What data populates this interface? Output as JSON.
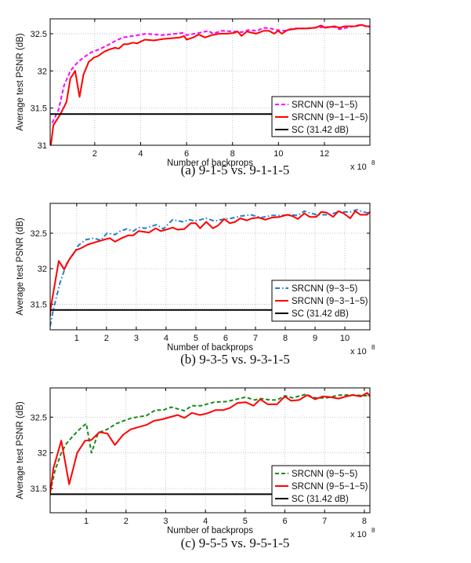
{
  "chart_data": [
    {
      "type": "line",
      "caption": "(a) 9-1-5 vs. 9-1-1-5",
      "xlabel": "Number of backprops",
      "ylabel": "Average test PSNR (dB)",
      "x_multiplier_base": "x 10",
      "x_multiplier_exp": "8",
      "xlim": [
        0.06,
        13.98
      ],
      "ylim": [
        31,
        32.7
      ],
      "xticks": [
        2,
        4,
        6,
        8,
        10,
        12
      ],
      "yticks": [
        31,
        31.5,
        32,
        32.5
      ],
      "grid": true,
      "legend_position": "bottom-right",
      "series": [
        {
          "name": "SRCNN (9−1−5)",
          "color": "#ff00ff",
          "style": "dashed",
          "x": [
            0.15,
            0.43,
            0.66,
            0.94,
            1.24,
            1.51,
            1.85,
            2.2,
            2.53,
            2.88,
            3.22,
            3.67,
            4.24,
            4.92,
            5.83,
            6.0,
            6.52,
            6.97,
            7.14,
            7.54,
            8.11,
            8.39,
            8.68,
            9.07,
            9.36,
            9.65,
            9.93,
            10.27,
            10.61,
            11.07,
            11.52,
            12.09,
            12.43,
            12.66,
            13.11,
            13.57,
            13.98
          ],
          "y": [
            31.3,
            31.48,
            31.8,
            32.0,
            32.11,
            32.18,
            32.25,
            32.29,
            32.34,
            32.4,
            32.45,
            32.47,
            32.5,
            32.48,
            32.51,
            32.48,
            32.51,
            32.54,
            32.5,
            32.54,
            32.53,
            32.52,
            32.55,
            32.54,
            32.58,
            32.57,
            32.55,
            32.54,
            32.57,
            32.57,
            32.58,
            32.59,
            32.59,
            32.56,
            32.59,
            32.62,
            32.59
          ]
        },
        {
          "name": "SRCNN (9−1−1−5)",
          "color": "#ff0000",
          "style": "solid",
          "x": [
            0.09,
            0.2,
            0.49,
            0.77,
            0.94,
            1.15,
            1.34,
            1.51,
            1.74,
            1.97,
            2.14,
            2.42,
            2.65,
            2.88,
            3.05,
            3.27,
            3.44,
            3.67,
            3.84,
            4.18,
            4.58,
            4.98,
            5.38,
            5.72,
            5.89,
            6.0,
            6.29,
            6.52,
            6.8,
            7.09,
            7.43,
            7.77,
            8.05,
            8.22,
            8.39,
            8.62,
            9.02,
            9.36,
            9.59,
            9.81,
            9.98,
            10.15,
            10.39,
            10.84,
            11.24,
            11.58,
            11.86,
            12.03,
            12.43,
            12.66,
            12.89,
            13.34,
            13.63,
            13.8,
            13.98
          ],
          "y": [
            31.0,
            31.27,
            31.41,
            31.58,
            31.9,
            32.0,
            31.65,
            31.95,
            32.12,
            32.18,
            32.2,
            32.26,
            32.29,
            32.31,
            32.3,
            32.36,
            32.36,
            32.38,
            32.37,
            32.42,
            32.41,
            32.43,
            32.44,
            32.45,
            32.47,
            32.42,
            32.45,
            32.49,
            32.45,
            32.48,
            32.5,
            32.5,
            32.51,
            32.53,
            32.47,
            32.53,
            32.5,
            32.54,
            32.54,
            32.5,
            32.54,
            32.5,
            32.55,
            32.57,
            32.57,
            32.58,
            32.61,
            32.58,
            32.6,
            32.58,
            32.6,
            32.6,
            32.62,
            32.6,
            32.6
          ]
        },
        {
          "name": "SC (31.42 dB)",
          "color": "#000000",
          "style": "solid",
          "x": [
            0.06,
            13.98
          ],
          "y": [
            31.42,
            31.42
          ]
        }
      ]
    },
    {
      "type": "line",
      "caption": "(b) 9-3-5 vs. 9-3-1-5",
      "xlabel": "Number of backprops",
      "ylabel": "Average test PSNR (dB)",
      "x_multiplier_base": "x 10",
      "x_multiplier_exp": "8",
      "xlim": [
        0.11,
        10.84
      ],
      "ylim": [
        31.14,
        32.92
      ],
      "xticks": [
        1,
        2,
        3,
        4,
        5,
        6,
        7,
        8,
        9,
        10
      ],
      "yticks": [
        31.5,
        32,
        32.5
      ],
      "grid": true,
      "legend_position": "bottom-right",
      "series": [
        {
          "name": "SRCNN (9−3−5)",
          "color": "#1f7fd0",
          "style": "dashdot",
          "x": [
            0.11,
            0.22,
            0.44,
            0.66,
            0.88,
            1.06,
            1.32,
            1.58,
            1.8,
            2.02,
            2.29,
            2.46,
            2.68,
            2.9,
            3.08,
            3.3,
            3.69,
            3.91,
            4.22,
            4.57,
            4.79,
            4.96,
            5.35,
            5.62,
            5.97,
            6.19,
            6.49,
            6.84,
            7.19,
            7.55,
            7.9,
            8.16,
            8.42,
            8.64,
            9.04,
            9.47,
            9.78,
            10.18,
            10.4,
            10.62,
            10.84
          ],
          "y": [
            31.19,
            31.43,
            31.8,
            32.07,
            32.2,
            32.33,
            32.41,
            32.43,
            32.4,
            32.5,
            32.48,
            32.53,
            32.56,
            32.53,
            32.58,
            32.57,
            32.62,
            32.56,
            32.69,
            32.66,
            32.69,
            32.67,
            32.71,
            32.67,
            32.7,
            32.71,
            32.74,
            32.76,
            32.72,
            32.75,
            32.75,
            32.76,
            32.75,
            32.81,
            32.76,
            32.76,
            32.8,
            32.8,
            32.83,
            32.8,
            32.78
          ]
        },
        {
          "name": "SRCNN (9−3−1−5)",
          "color": "#ff0000",
          "style": "solid",
          "x": [
            0.11,
            0.12,
            0.4,
            0.58,
            0.75,
            0.97,
            1.15,
            1.37,
            1.76,
            2.11,
            2.29,
            2.51,
            2.73,
            2.9,
            3.08,
            3.43,
            3.65,
            3.82,
            4.0,
            4.22,
            4.39,
            4.61,
            4.83,
            5.0,
            5.14,
            5.35,
            5.57,
            5.75,
            5.95,
            6.14,
            6.32,
            6.49,
            6.71,
            6.89,
            7.11,
            7.33,
            7.55,
            7.81,
            8.07,
            8.25,
            8.42,
            8.64,
            8.82,
            9.04,
            9.21,
            9.39,
            9.61,
            9.78,
            9.96,
            10.18,
            10.35,
            10.52,
            10.74,
            10.84
          ],
          "y": [
            31.33,
            31.43,
            32.11,
            31.99,
            32.13,
            32.26,
            32.29,
            32.34,
            32.39,
            32.43,
            32.38,
            32.43,
            32.47,
            32.47,
            32.53,
            32.51,
            32.57,
            32.53,
            32.55,
            32.58,
            32.55,
            32.56,
            32.64,
            32.64,
            32.57,
            32.66,
            32.57,
            32.61,
            32.7,
            32.64,
            32.66,
            32.71,
            32.68,
            32.71,
            32.72,
            32.69,
            32.72,
            32.73,
            32.76,
            32.74,
            32.7,
            32.78,
            32.73,
            32.73,
            32.8,
            32.79,
            32.73,
            32.81,
            32.78,
            32.71,
            32.81,
            32.76,
            32.76,
            32.8
          ]
        },
        {
          "name": "SC (31.42 dB)",
          "color": "#000000",
          "style": "solid",
          "x": [
            0.11,
            10.84
          ],
          "y": [
            31.42,
            31.42
          ]
        }
      ]
    },
    {
      "type": "line",
      "caption": "(c) 9-5-5 vs. 9-5-1-5",
      "xlabel": "Number of backprops",
      "ylabel": "Average test PSNR (dB)",
      "x_multiplier_base": "x 10",
      "x_multiplier_exp": "8",
      "xlim": [
        0.09,
        8.14
      ],
      "ylim": [
        31.16,
        32.91
      ],
      "xticks": [
        1,
        2,
        3,
        4,
        5,
        6,
        7,
        8
      ],
      "yticks": [
        31.5,
        32,
        32.5
      ],
      "grid": true,
      "legend_position": "bottom-right",
      "series": [
        {
          "name": "SRCNN (9−5−5)",
          "color": "#1a8a1a",
          "style": "dashed",
          "x": [
            0.09,
            0.21,
            0.37,
            0.5,
            0.67,
            0.83,
            1.0,
            1.13,
            1.3,
            1.53,
            1.76,
            1.95,
            2.15,
            2.51,
            2.74,
            2.94,
            3.14,
            3.47,
            3.66,
            3.89,
            4.22,
            4.55,
            4.78,
            5.01,
            5.24,
            5.4,
            5.63,
            5.8,
            6.0,
            6.19,
            6.52,
            6.76,
            7.05,
            7.38,
            7.71,
            8.04,
            8.14
          ],
          "y": [
            31.45,
            31.75,
            32.0,
            32.13,
            32.24,
            32.33,
            32.41,
            32.0,
            32.28,
            32.33,
            32.41,
            32.45,
            32.49,
            32.52,
            32.6,
            32.6,
            32.64,
            32.59,
            32.66,
            32.66,
            32.71,
            32.72,
            32.75,
            32.78,
            32.74,
            32.76,
            32.74,
            32.74,
            32.8,
            32.77,
            32.82,
            32.77,
            32.77,
            32.81,
            32.81,
            32.8,
            32.82
          ]
        },
        {
          "name": "SRCNN (9−5−1−5)",
          "color": "#ff0000",
          "style": "solid",
          "x": [
            0.09,
            0.17,
            0.37,
            0.57,
            0.77,
            0.97,
            1.13,
            1.33,
            1.53,
            1.72,
            1.92,
            2.12,
            2.51,
            2.71,
            2.91,
            3.3,
            3.47,
            3.66,
            3.86,
            4.03,
            4.26,
            4.45,
            4.62,
            4.81,
            5.01,
            5.21,
            5.38,
            5.57,
            5.8,
            6.0,
            6.16,
            6.36,
            6.56,
            6.76,
            6.95,
            7.15,
            7.35,
            7.54,
            7.71,
            7.91,
            8.07,
            8.14
          ],
          "y": [
            31.43,
            31.78,
            32.17,
            31.56,
            32.0,
            32.17,
            32.18,
            32.29,
            32.27,
            32.11,
            32.25,
            32.33,
            32.39,
            32.45,
            32.47,
            32.53,
            32.49,
            32.56,
            32.53,
            32.55,
            32.6,
            32.6,
            32.63,
            32.7,
            32.71,
            32.66,
            32.75,
            32.68,
            32.68,
            32.79,
            32.73,
            32.74,
            32.81,
            32.75,
            32.79,
            32.78,
            32.76,
            32.79,
            32.81,
            32.79,
            32.84,
            32.79
          ]
        },
        {
          "name": "SC (31.42 dB)",
          "color": "#000000",
          "style": "solid",
          "x": [
            0.09,
            8.14
          ],
          "y": [
            31.42,
            31.42
          ]
        }
      ]
    }
  ]
}
